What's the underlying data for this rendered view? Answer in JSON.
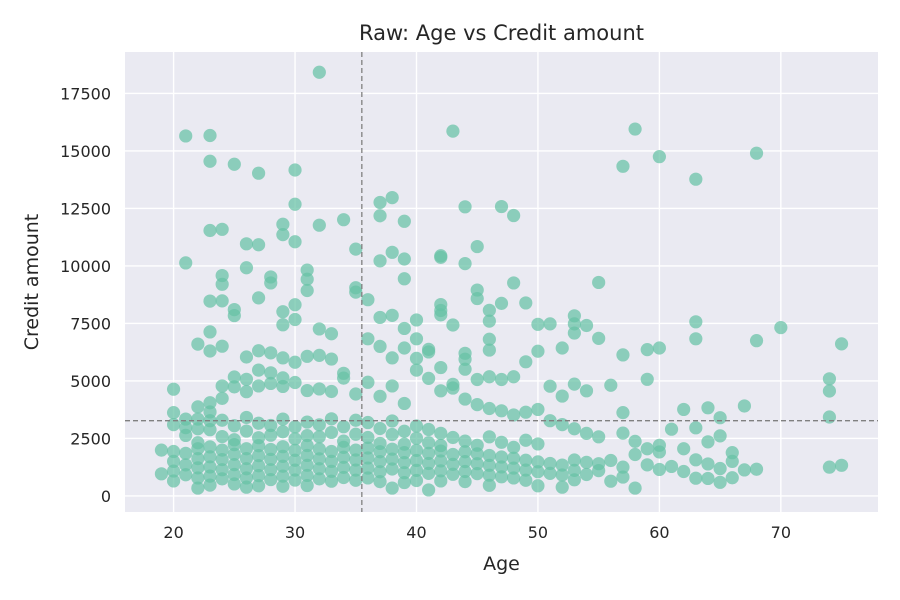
{
  "chart_data": {
    "type": "scatter",
    "title": "Raw: Age vs Credit amount",
    "xlabel": "Age",
    "ylabel": "Credit amount",
    "xlim": [
      16,
      78
    ],
    "ylim": [
      -700,
      19300
    ],
    "xticks": [
      20,
      30,
      40,
      50,
      60,
      70
    ],
    "yticks": [
      0,
      2500,
      5000,
      7500,
      10000,
      12500,
      15000,
      17500
    ],
    "grid": true,
    "background": "#eaeaf2",
    "point_color": "#66c2a5",
    "reference_lines": {
      "vertical_x": 35.5,
      "horizontal_y": 3270,
      "color": "#808080",
      "style": "dashed"
    },
    "points": [
      [
        32,
        18420
      ],
      [
        21,
        15650
      ],
      [
        23,
        15670
      ],
      [
        23,
        14550
      ],
      [
        25,
        14420
      ],
      [
        27,
        14030
      ],
      [
        30,
        14170
      ],
      [
        43,
        15860
      ],
      [
        58,
        15950
      ],
      [
        60,
        14750
      ],
      [
        57,
        14330
      ],
      [
        68,
        14900
      ],
      [
        63,
        13770
      ],
      [
        30,
        12680
      ],
      [
        29,
        11810
      ],
      [
        29,
        11360
      ],
      [
        23,
        11540
      ],
      [
        24,
        11590
      ],
      [
        26,
        10960
      ],
      [
        27,
        10920
      ],
      [
        30,
        11050
      ],
      [
        21,
        10130
      ],
      [
        26,
        9920
      ],
      [
        24,
        9580
      ],
      [
        28,
        9520
      ],
      [
        31,
        9820
      ],
      [
        31,
        9420
      ],
      [
        28,
        9260
      ],
      [
        31,
        8930
      ],
      [
        24,
        9200
      ],
      [
        24,
        8480
      ],
      [
        23,
        8470
      ],
      [
        25,
        8100
      ],
      [
        27,
        8610
      ],
      [
        29,
        8010
      ],
      [
        30,
        8310
      ],
      [
        30,
        7670
      ],
      [
        29,
        7440
      ],
      [
        32,
        7260
      ],
      [
        33,
        7050
      ],
      [
        25,
        7840
      ],
      [
        23,
        7130
      ],
      [
        22,
        6600
      ],
      [
        23,
        6300
      ],
      [
        24,
        6510
      ],
      [
        26,
        6040
      ],
      [
        27,
        6310
      ],
      [
        28,
        6220
      ],
      [
        29,
        6000
      ],
      [
        30,
        5810
      ],
      [
        31,
        6070
      ],
      [
        32,
        6110
      ],
      [
        33,
        5950
      ],
      [
        32,
        11770
      ],
      [
        34,
        12010
      ],
      [
        37,
        12180
      ],
      [
        37,
        12760
      ],
      [
        38,
        12970
      ],
      [
        39,
        11940
      ],
      [
        35,
        10730
      ],
      [
        37,
        10220
      ],
      [
        38,
        10590
      ],
      [
        39,
        10300
      ],
      [
        39,
        9440
      ],
      [
        35,
        9050
      ],
      [
        35,
        8860
      ],
      [
        36,
        8530
      ],
      [
        37,
        7760
      ],
      [
        38,
        7850
      ],
      [
        39,
        7280
      ],
      [
        40,
        7650
      ],
      [
        40,
        6830
      ],
      [
        41,
        6370
      ],
      [
        41,
        6260
      ],
      [
        42,
        5580
      ],
      [
        42,
        8320
      ],
      [
        42,
        8060
      ],
      [
        42,
        7870
      ],
      [
        43,
        7430
      ],
      [
        42,
        10440
      ],
      [
        42,
        10370
      ],
      [
        44,
        10100
      ],
      [
        44,
        12570
      ],
      [
        45,
        10840
      ],
      [
        45,
        8950
      ],
      [
        45,
        8580
      ],
      [
        46,
        8070
      ],
      [
        46,
        7600
      ],
      [
        46,
        6810
      ],
      [
        46,
        6340
      ],
      [
        47,
        8370
      ],
      [
        47,
        12580
      ],
      [
        48,
        12190
      ],
      [
        48,
        9260
      ],
      [
        49,
        8390
      ],
      [
        50,
        7460
      ],
      [
        51,
        7480
      ],
      [
        52,
        6430
      ],
      [
        53,
        7830
      ],
      [
        53,
        7480
      ],
      [
        53,
        7080
      ],
      [
        54,
        7410
      ],
      [
        55,
        9280
      ],
      [
        55,
        6850
      ],
      [
        57,
        6130
      ],
      [
        59,
        6360
      ],
      [
        60,
        6430
      ],
      [
        63,
        7570
      ],
      [
        63,
        6830
      ],
      [
        68,
        6750
      ],
      [
        70,
        7320
      ],
      [
        75,
        6610
      ],
      [
        44,
        6200
      ],
      [
        44,
        5940
      ],
      [
        44,
        5510
      ],
      [
        45,
        5060
      ],
      [
        46,
        5180
      ],
      [
        47,
        5060
      ],
      [
        48,
        5180
      ],
      [
        49,
        5830
      ],
      [
        50,
        6290
      ],
      [
        51,
        4770
      ],
      [
        52,
        4340
      ],
      [
        53,
        4860
      ],
      [
        54,
        4570
      ],
      [
        56,
        4810
      ],
      [
        59,
        5070
      ],
      [
        62,
        3760
      ],
      [
        64,
        3830
      ],
      [
        65,
        3400
      ],
      [
        67,
        3910
      ],
      [
        74,
        5090
      ],
      [
        74,
        4560
      ],
      [
        74,
        3430
      ],
      [
        36,
        6830
      ],
      [
        37,
        6500
      ],
      [
        38,
        6000
      ],
      [
        39,
        6430
      ],
      [
        40,
        5980
      ],
      [
        40,
        5470
      ],
      [
        41,
        5110
      ],
      [
        42,
        4570
      ],
      [
        43,
        4850
      ],
      [
        43,
        4690
      ],
      [
        44,
        4210
      ],
      [
        45,
        3970
      ],
      [
        46,
        3800
      ],
      [
        47,
        3700
      ],
      [
        48,
        3520
      ],
      [
        49,
        3640
      ],
      [
        50,
        3760
      ],
      [
        51,
        3270
      ],
      [
        52,
        3100
      ],
      [
        53,
        2920
      ],
      [
        54,
        2720
      ],
      [
        55,
        2570
      ],
      [
        57,
        3620
      ],
      [
        57,
        2730
      ],
      [
        58,
        2370
      ],
      [
        59,
        2050
      ],
      [
        60,
        2200
      ],
      [
        61,
        2900
      ],
      [
        62,
        2050
      ],
      [
        63,
        2960
      ],
      [
        64,
        2350
      ],
      [
        65,
        2610
      ],
      [
        66,
        1880
      ],
      [
        20,
        4640
      ],
      [
        20,
        3620
      ],
      [
        21,
        3340
      ],
      [
        21,
        2970
      ],
      [
        22,
        3870
      ],
      [
        22,
        3340
      ],
      [
        23,
        4050
      ],
      [
        23,
        3650
      ],
      [
        24,
        4780
      ],
      [
        24,
        4240
      ],
      [
        25,
        5170
      ],
      [
        25,
        4740
      ],
      [
        26,
        5070
      ],
      [
        26,
        4530
      ],
      [
        27,
        4780
      ],
      [
        27,
        5470
      ],
      [
        28,
        5350
      ],
      [
        28,
        4890
      ],
      [
        29,
        5130
      ],
      [
        29,
        4760
      ],
      [
        30,
        4930
      ],
      [
        31,
        4580
      ],
      [
        32,
        4650
      ],
      [
        33,
        4540
      ],
      [
        34,
        5330
      ],
      [
        34,
        5120
      ],
      [
        35,
        4430
      ],
      [
        36,
        4940
      ],
      [
        37,
        4330
      ],
      [
        38,
        4780
      ],
      [
        39,
        4020
      ],
      [
        20,
        3100
      ],
      [
        21,
        2630
      ],
      [
        22,
        2920
      ],
      [
        22,
        2310
      ],
      [
        23,
        3270
      ],
      [
        23,
        2880
      ],
      [
        24,
        2580
      ],
      [
        24,
        3290
      ],
      [
        25,
        3050
      ],
      [
        25,
        2440
      ],
      [
        26,
        3410
      ],
      [
        26,
        2820
      ],
      [
        27,
        3160
      ],
      [
        27,
        2530
      ],
      [
        28,
        3060
      ],
      [
        28,
        2640
      ],
      [
        29,
        3340
      ],
      [
        29,
        2790
      ],
      [
        30,
        3000
      ],
      [
        30,
        2480
      ],
      [
        31,
        3210
      ],
      [
        31,
        2620
      ],
      [
        32,
        3090
      ],
      [
        32,
        2570
      ],
      [
        33,
        3350
      ],
      [
        33,
        2760
      ],
      [
        34,
        3010
      ],
      [
        34,
        2380
      ],
      [
        35,
        3290
      ],
      [
        35,
        2680
      ],
      [
        36,
        3190
      ],
      [
        36,
        2540
      ],
      [
        37,
        2930
      ],
      [
        37,
        2280
      ],
      [
        38,
        3260
      ],
      [
        38,
        2670
      ],
      [
        39,
        2810
      ],
      [
        39,
        2250
      ],
      [
        40,
        3040
      ],
      [
        40,
        2510
      ],
      [
        41,
        2890
      ],
      [
        41,
        2310
      ],
      [
        42,
        2720
      ],
      [
        42,
        2190
      ],
      [
        43,
        2540
      ],
      [
        44,
        2380
      ],
      [
        45,
        2200
      ],
      [
        46,
        2570
      ],
      [
        47,
        2330
      ],
      [
        48,
        2110
      ],
      [
        49,
        2420
      ],
      [
        50,
        2260
      ],
      [
        19,
        1990
      ],
      [
        19,
        960
      ],
      [
        20,
        1930
      ],
      [
        20,
        1500
      ],
      [
        20,
        1080
      ],
      [
        20,
        650
      ],
      [
        21,
        1850
      ],
      [
        21,
        1350
      ],
      [
        21,
        920
      ],
      [
        22,
        2050
      ],
      [
        22,
        1620
      ],
      [
        22,
        1220
      ],
      [
        22,
        780
      ],
      [
        22,
        340
      ],
      [
        23,
        2130
      ],
      [
        23,
        1700
      ],
      [
        23,
        1260
      ],
      [
        23,
        860
      ],
      [
        23,
        470
      ],
      [
        24,
        1990
      ],
      [
        24,
        1580
      ],
      [
        24,
        1140
      ],
      [
        24,
        740
      ],
      [
        25,
        2230
      ],
      [
        25,
        1810
      ],
      [
        25,
        1360
      ],
      [
        25,
        930
      ],
      [
        25,
        520
      ],
      [
        26,
        2050
      ],
      [
        26,
        1620
      ],
      [
        26,
        1180
      ],
      [
        26,
        780
      ],
      [
        26,
        380
      ],
      [
        27,
        2180
      ],
      [
        27,
        1750
      ],
      [
        27,
        1310
      ],
      [
        27,
        880
      ],
      [
        27,
        440
      ],
      [
        28,
        2020
      ],
      [
        28,
        1590
      ],
      [
        28,
        1140
      ],
      [
        28,
        710
      ],
      [
        29,
        2140
      ],
      [
        29,
        1720
      ],
      [
        29,
        1290
      ],
      [
        29,
        860
      ],
      [
        29,
        420
      ],
      [
        30,
        1980
      ],
      [
        30,
        1550
      ],
      [
        30,
        1120
      ],
      [
        30,
        690
      ],
      [
        31,
        2190
      ],
      [
        31,
        1760
      ],
      [
        31,
        1330
      ],
      [
        31,
        890
      ],
      [
        31,
        450
      ],
      [
        32,
        2040
      ],
      [
        32,
        1610
      ],
      [
        32,
        1180
      ],
      [
        32,
        740
      ],
      [
        33,
        1930
      ],
      [
        33,
        1500
      ],
      [
        33,
        1070
      ],
      [
        33,
        640
      ],
      [
        34,
        2110
      ],
      [
        34,
        1680
      ],
      [
        34,
        1240
      ],
      [
        34,
        800
      ],
      [
        35,
        1990
      ],
      [
        35,
        1560
      ],
      [
        35,
        1120
      ],
      [
        35,
        680
      ],
      [
        36,
        2080
      ],
      [
        36,
        1650
      ],
      [
        36,
        1210
      ],
      [
        36,
        780
      ],
      [
        37,
        1920
      ],
      [
        37,
        1490
      ],
      [
        37,
        1050
      ],
      [
        37,
        620
      ],
      [
        38,
        2030
      ],
      [
        38,
        1600
      ],
      [
        38,
        1170
      ],
      [
        38,
        340
      ],
      [
        39,
        1880
      ],
      [
        39,
        1450
      ],
      [
        39,
        1010
      ],
      [
        39,
        580
      ],
      [
        40,
        1980
      ],
      [
        40,
        1540
      ],
      [
        40,
        1110
      ],
      [
        40,
        670
      ],
      [
        41,
        1850
      ],
      [
        41,
        1410
      ],
      [
        41,
        980
      ],
      [
        41,
        260
      ],
      [
        42,
        1950
      ],
      [
        42,
        1520
      ],
      [
        42,
        1090
      ],
      [
        42,
        650
      ],
      [
        43,
        1800
      ],
      [
        43,
        1370
      ],
      [
        43,
        940
      ],
      [
        44,
        1920
      ],
      [
        44,
        1490
      ],
      [
        44,
        1060
      ],
      [
        44,
        620
      ],
      [
        45,
        1830
      ],
      [
        45,
        1400
      ],
      [
        45,
        970
      ],
      [
        46,
        1760
      ],
      [
        46,
        1330
      ],
      [
        46,
        900
      ],
      [
        46,
        460
      ],
      [
        47,
        1690
      ],
      [
        47,
        1260
      ],
      [
        47,
        830
      ],
      [
        48,
        1640
      ],
      [
        48,
        1210
      ],
      [
        48,
        780
      ],
      [
        49,
        1550
      ],
      [
        49,
        1120
      ],
      [
        49,
        680
      ],
      [
        50,
        1480
      ],
      [
        50,
        1050
      ],
      [
        50,
        440
      ],
      [
        51,
        1410
      ],
      [
        51,
        980
      ],
      [
        52,
        1340
      ],
      [
        52,
        910
      ],
      [
        52,
        380
      ],
      [
        53,
        1560
      ],
      [
        53,
        1110
      ],
      [
        53,
        700
      ],
      [
        54,
        1460
      ],
      [
        54,
        930
      ],
      [
        55,
        1400
      ],
      [
        55,
        1100
      ],
      [
        56,
        1540
      ],
      [
        56,
        640
      ],
      [
        57,
        1250
      ],
      [
        57,
        820
      ],
      [
        58,
        1800
      ],
      [
        58,
        340
      ],
      [
        59,
        1350
      ],
      [
        60,
        1150
      ],
      [
        60,
        1910
      ],
      [
        61,
        1280
      ],
      [
        62,
        1060
      ],
      [
        63,
        1570
      ],
      [
        63,
        770
      ],
      [
        64,
        1390
      ],
      [
        64,
        760
      ],
      [
        65,
        1190
      ],
      [
        65,
        590
      ],
      [
        66,
        1500
      ],
      [
        66,
        790
      ],
      [
        67,
        1130
      ],
      [
        68,
        1160
      ],
      [
        74,
        1250
      ],
      [
        75,
        1330
      ]
    ]
  }
}
